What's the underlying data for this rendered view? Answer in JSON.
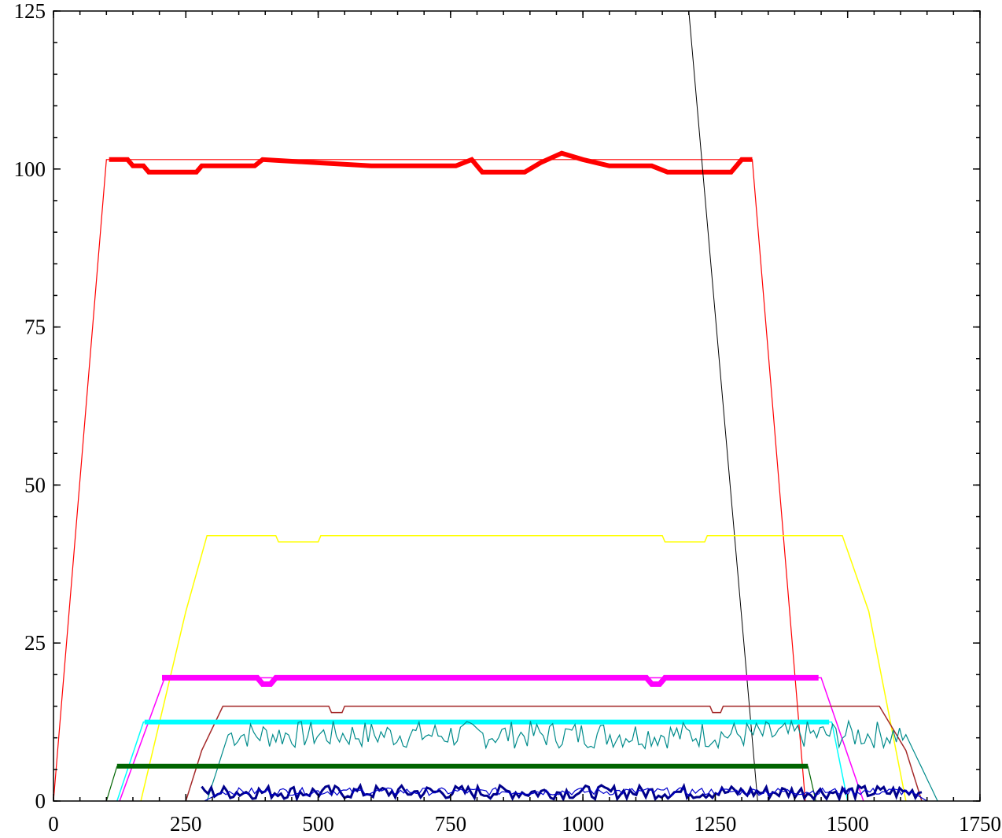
{
  "chart_data": {
    "type": "line",
    "title": "",
    "xlabel": "",
    "ylabel": "",
    "xlim": [
      0,
      1750
    ],
    "ylim": [
      0,
      125
    ],
    "x_ticks": [
      "0",
      "250",
      "500",
      "750",
      "1000",
      "1250",
      "1500",
      "1750"
    ],
    "y_ticks": [
      "0",
      "25",
      "50",
      "75",
      "100",
      "125"
    ],
    "grid": false,
    "legend": "none",
    "series": [
      {
        "color": "#ff0000",
        "width": 1.2,
        "noise": 0,
        "points": [
          [
            0,
            0
          ],
          [
            100,
            101.5
          ],
          [
            1320,
            101.5
          ],
          [
            1420,
            0
          ]
        ]
      },
      {
        "color": "#ff0000",
        "width": 6,
        "noise": 0,
        "points": [
          [
            105,
            101.5
          ],
          [
            140,
            101.5
          ],
          [
            150,
            100.5
          ],
          [
            170,
            100.5
          ],
          [
            180,
            99.5
          ],
          [
            270,
            99.5
          ],
          [
            280,
            100.5
          ],
          [
            380,
            100.5
          ],
          [
            395,
            101.5
          ],
          [
            600,
            100.5
          ],
          [
            760,
            100.5
          ],
          [
            790,
            101.5
          ],
          [
            810,
            99.5
          ],
          [
            890,
            99.5
          ],
          [
            920,
            101
          ],
          [
            960,
            102.5
          ],
          [
            1000,
            101.5
          ],
          [
            1050,
            100.5
          ],
          [
            1130,
            100.5
          ],
          [
            1160,
            99.5
          ],
          [
            1280,
            99.5
          ],
          [
            1300,
            101.5
          ],
          [
            1320,
            101.5
          ]
        ]
      },
      {
        "color": "#000000",
        "width": 1,
        "noise": 0,
        "points": [
          [
            1200,
            125
          ],
          [
            1330,
            0
          ]
        ]
      },
      {
        "color": "#ffff00",
        "width": 1.5,
        "noise": 0,
        "points": [
          [
            165,
            0
          ],
          [
            250,
            30
          ],
          [
            290,
            42
          ],
          [
            420,
            42
          ],
          [
            425,
            41
          ],
          [
            500,
            41
          ],
          [
            505,
            42
          ],
          [
            1150,
            42
          ],
          [
            1155,
            41
          ],
          [
            1230,
            41
          ],
          [
            1235,
            42
          ],
          [
            1490,
            42
          ],
          [
            1540,
            30
          ],
          [
            1610,
            0
          ]
        ]
      },
      {
        "color": "#ff00ff",
        "width": 1.5,
        "noise": 0,
        "points": [
          [
            125,
            0
          ],
          [
            210,
            19.5
          ],
          [
            1450,
            19.5
          ],
          [
            1530,
            0
          ]
        ]
      },
      {
        "color": "#ff00ff",
        "width": 7,
        "noise": 0,
        "points": [
          [
            205,
            19.5
          ],
          [
            385,
            19.5
          ],
          [
            395,
            18.5
          ],
          [
            410,
            18.5
          ],
          [
            420,
            19.5
          ],
          [
            1120,
            19.5
          ],
          [
            1130,
            18.5
          ],
          [
            1145,
            18.5
          ],
          [
            1155,
            19.5
          ],
          [
            1445,
            19.5
          ]
        ]
      },
      {
        "color": "#a52a2a",
        "width": 1.5,
        "noise": 0,
        "points": [
          [
            250,
            0
          ],
          [
            280,
            8
          ],
          [
            320,
            15
          ],
          [
            520,
            15
          ],
          [
            525,
            14
          ],
          [
            545,
            14
          ],
          [
            550,
            15
          ],
          [
            1240,
            15
          ],
          [
            1245,
            14
          ],
          [
            1260,
            14
          ],
          [
            1265,
            15
          ],
          [
            1560,
            15
          ],
          [
            1610,
            8
          ],
          [
            1640,
            0
          ]
        ]
      },
      {
        "color": "#00ffff",
        "width": 1.5,
        "noise": 0,
        "points": [
          [
            120,
            0
          ],
          [
            170,
            12.5
          ],
          [
            1470,
            12.5
          ],
          [
            1500,
            0
          ]
        ]
      },
      {
        "color": "#00ffff",
        "width": 6,
        "noise": 0,
        "points": [
          [
            172,
            12.5
          ],
          [
            1465,
            12.5
          ]
        ]
      },
      {
        "color": "#008b8b",
        "width": 1.2,
        "noise": 2.2,
        "points": [
          [
            290,
            0
          ],
          [
            330,
            10.5
          ],
          [
            1610,
            10.5
          ],
          [
            1670,
            0
          ]
        ]
      },
      {
        "color": "#006400",
        "width": 6,
        "noise": 0,
        "points": [
          [
            120,
            5.5
          ],
          [
            1425,
            5.5
          ]
        ]
      },
      {
        "color": "#006400",
        "width": 1.2,
        "noise": 0,
        "points": [
          [
            100,
            0
          ],
          [
            120,
            5.5
          ],
          [
            1425,
            5.5
          ],
          [
            1440,
            0
          ]
        ]
      },
      {
        "color": "#00008b",
        "width": 3,
        "noise": 1.1,
        "points": [
          [
            280,
            1.4
          ],
          [
            1640,
            1.4
          ]
        ]
      },
      {
        "color": "#0000cd",
        "width": 1.2,
        "noise": 0.6,
        "points": [
          [
            285,
            0
          ],
          [
            320,
            1.5
          ],
          [
            1620,
            1.5
          ],
          [
            1650,
            0
          ]
        ]
      }
    ]
  }
}
